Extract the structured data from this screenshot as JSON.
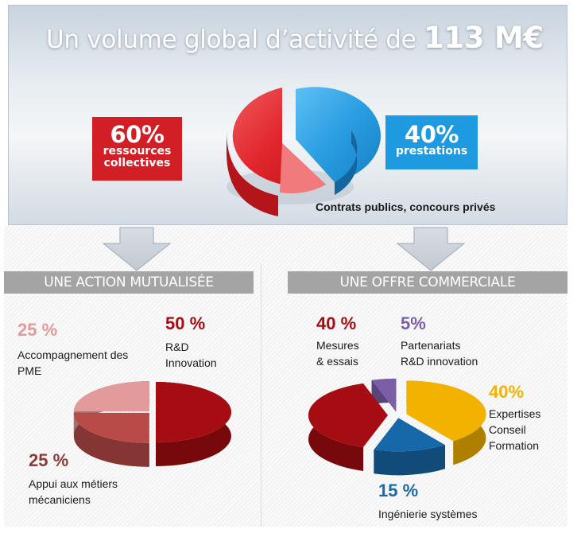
{
  "headline": {
    "text": "Un volume global d’activité de ",
    "amount": "113 M€"
  },
  "top": {
    "left": {
      "pct": "60%",
      "line1": "ressources",
      "line2": "collectives"
    },
    "right": {
      "pct": "40%",
      "line1": "prestations"
    },
    "note": "Contrats publics, concours privés"
  },
  "sections": {
    "left_header": "UNE ACTION MUTUALISÉE",
    "right_header": "UNE OFFRE COMMERCIALE"
  },
  "colors": {
    "red": "#d21f26",
    "blue": "#1e9ae0",
    "darkred": "#a50d12",
    "pink": "#e29a9a",
    "brick": "#b84a48",
    "violet": "#7c5ea8",
    "gold": "#f3b200",
    "steelblue": "#1668a8"
  },
  "chart_data": [
    {
      "type": "pie",
      "slices": [
        {
          "label": "ressources collectives",
          "value": 60
        },
        {
          "label": "prestations",
          "value": 40
        }
      ]
    },
    {
      "type": "pie",
      "slices": [
        {
          "pct": "50 %",
          "value": 50,
          "line1": "R&D",
          "line2": "Innovation"
        },
        {
          "pct": "25 %",
          "value": 25,
          "line1": "Appui aux métiers",
          "line2": "mécaniciens"
        },
        {
          "pct": "25 %",
          "value": 25,
          "line1": "Accompagnement des",
          "line2": "PME"
        }
      ]
    },
    {
      "type": "pie",
      "slices": [
        {
          "pct": "40%",
          "value": 40,
          "line1": "Expertises",
          "line2": "Conseil",
          "line3": "Formation"
        },
        {
          "pct": "15 %",
          "value": 15,
          "line1": "Ingénierie systèmes"
        },
        {
          "pct": "40 %",
          "value": 40,
          "line1": "Mesures",
          "line2": "& essais"
        },
        {
          "pct": "5%",
          "value": 5,
          "line1": "Partenariats",
          "line2": "R&D innovation"
        }
      ]
    }
  ]
}
